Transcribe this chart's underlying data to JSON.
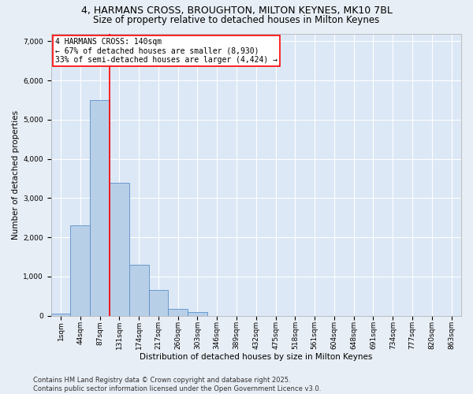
{
  "title_line1": "4, HARMANS CROSS, BROUGHTON, MILTON KEYNES, MK10 7BL",
  "title_line2": "Size of property relative to detached houses in Milton Keynes",
  "xlabel": "Distribution of detached houses by size in Milton Keynes",
  "ylabel": "Number of detached properties",
  "categories": [
    "1sqm",
    "44sqm",
    "87sqm",
    "131sqm",
    "174sqm",
    "217sqm",
    "260sqm",
    "303sqm",
    "346sqm",
    "389sqm",
    "432sqm",
    "475sqm",
    "518sqm",
    "561sqm",
    "604sqm",
    "648sqm",
    "691sqm",
    "734sqm",
    "777sqm",
    "820sqm",
    "863sqm"
  ],
  "values": [
    50,
    2300,
    5500,
    3400,
    1300,
    650,
    170,
    90,
    0,
    0,
    0,
    0,
    0,
    0,
    0,
    0,
    0,
    0,
    0,
    0,
    0
  ],
  "bar_color": "#b8cfe8",
  "bar_edge_color": "#5b8fc9",
  "vline_x": 2.5,
  "vline_color": "red",
  "annotation_text": "4 HARMANS CROSS: 140sqm\n← 67% of detached houses are smaller (8,930)\n33% of semi-detached houses are larger (4,424) →",
  "box_color": "red",
  "ylim": [
    0,
    7200
  ],
  "yticks": [
    0,
    1000,
    2000,
    3000,
    4000,
    5000,
    6000,
    7000
  ],
  "background_color": "#e8eef5",
  "plot_bg_color": "#dce8f5",
  "grid_color": "#ffffff",
  "footer_line1": "Contains HM Land Registry data © Crown copyright and database right 2025.",
  "footer_line2": "Contains public sector information licensed under the Open Government Licence v3.0.",
  "title_fontsize": 9,
  "subtitle_fontsize": 8.5,
  "axis_label_fontsize": 7.5,
  "tick_fontsize": 6.5,
  "annotation_fontsize": 7,
  "footer_fontsize": 6
}
